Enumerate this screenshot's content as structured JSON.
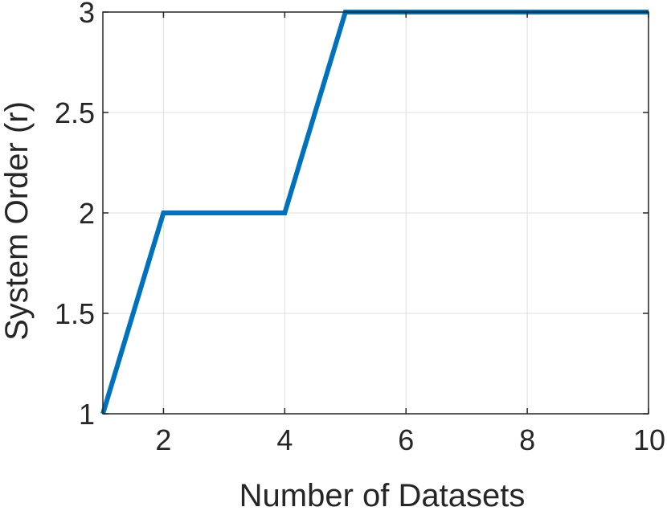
{
  "chart_data": {
    "type": "line",
    "xlabel": "Number of Datasets",
    "ylabel": "System Order (r)",
    "xlim": [
      1,
      10
    ],
    "ylim": [
      1,
      3
    ],
    "xticks": [
      2,
      4,
      6,
      8,
      10
    ],
    "xtick_labels": [
      "2",
      "4",
      "6",
      "8",
      "10"
    ],
    "yticks": [
      1,
      1.5,
      2,
      2.5,
      3
    ],
    "ytick_labels": [
      "1",
      "1.5",
      "2",
      "2.5",
      "3"
    ],
    "grid": true,
    "series": [
      {
        "color": "#0072BD",
        "x": [
          1,
          2,
          3,
          4,
          5,
          6,
          7,
          8,
          9,
          10
        ],
        "y": [
          1,
          2,
          2,
          2,
          3,
          3,
          3,
          3,
          3,
          3
        ]
      }
    ]
  }
}
